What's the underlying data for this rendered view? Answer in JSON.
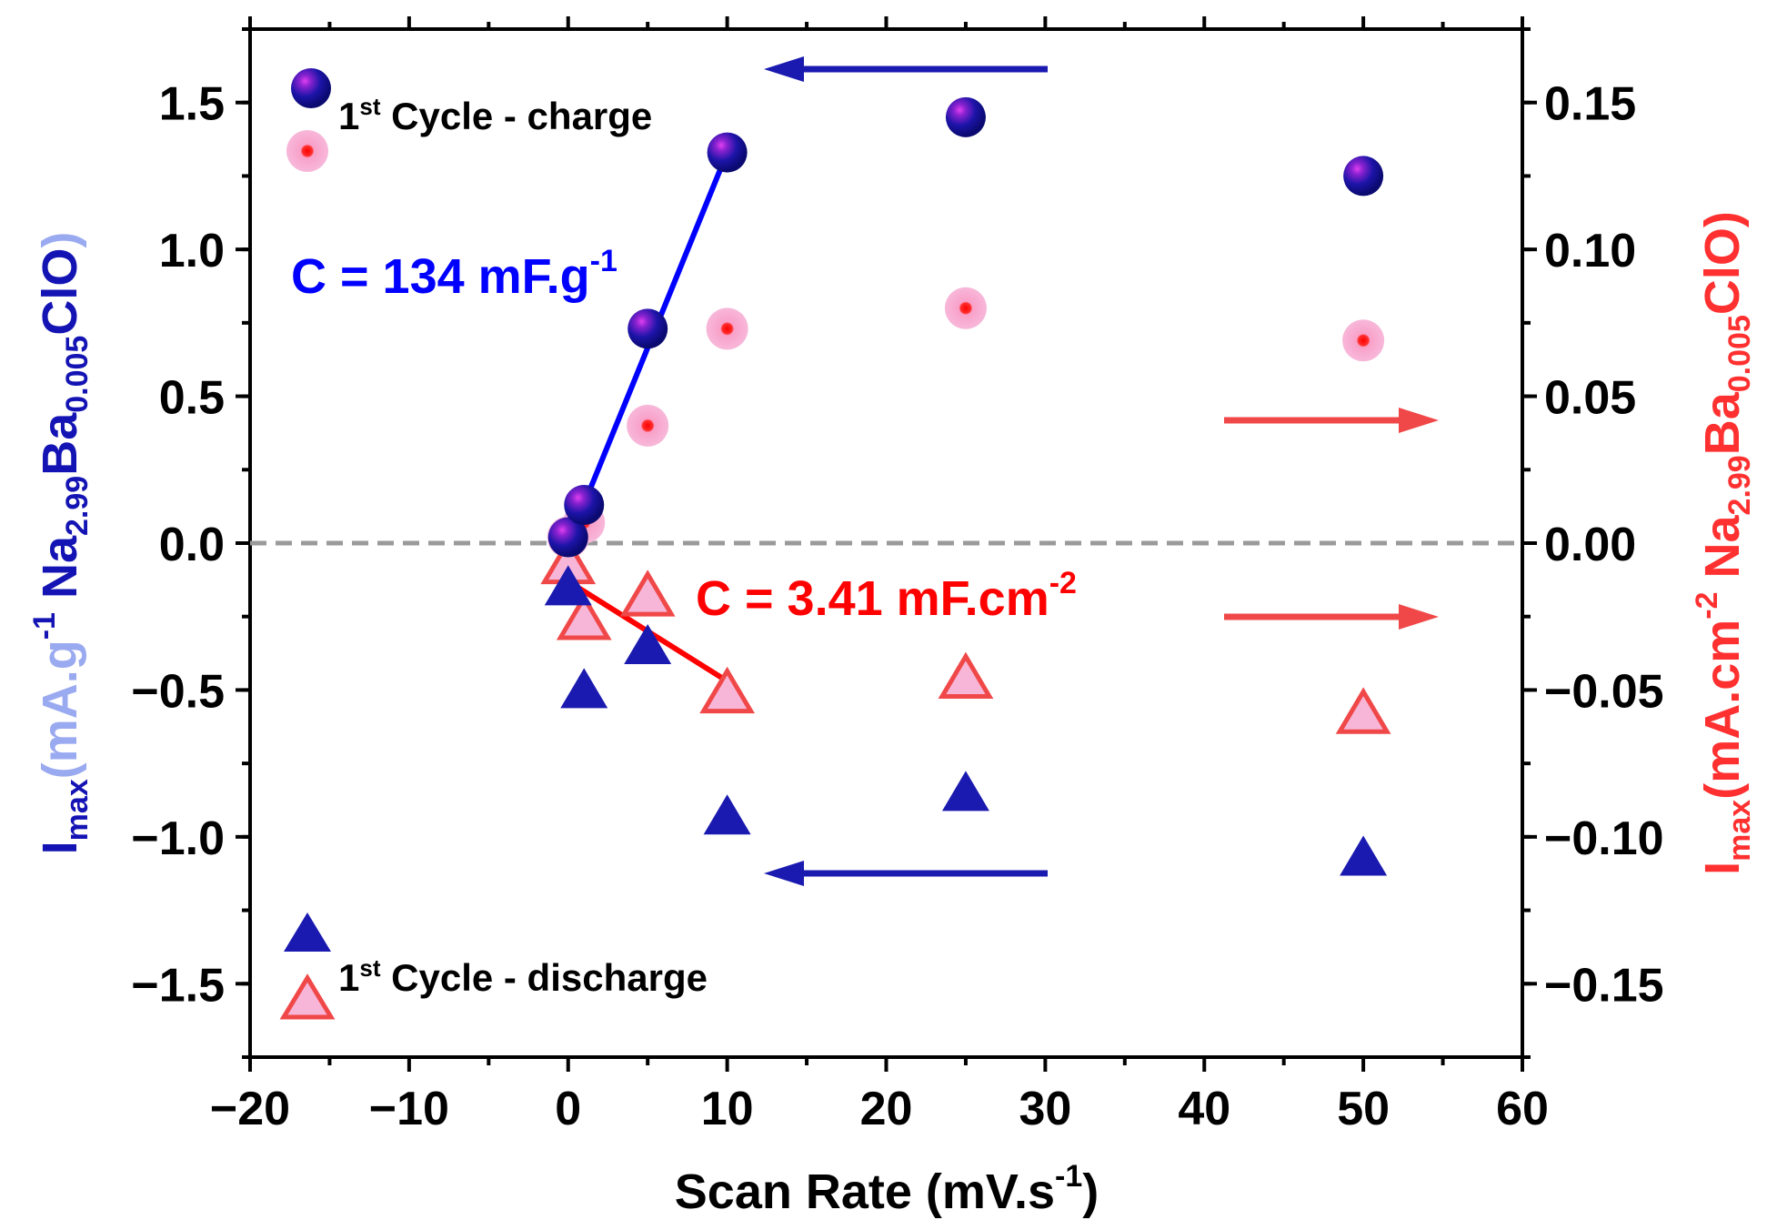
{
  "chart_data": {
    "type": "scatter",
    "xlabel": "Scan Rate (mV.s",
    "xlabel_sup": "-1",
    "xlabel_end": ")",
    "xlim": [
      -20,
      60
    ],
    "ylim_left": [
      -1.75,
      1.75
    ],
    "ylim_right": [
      -0.175,
      0.175
    ],
    "x_ticks": [
      -20,
      -10,
      0,
      10,
      20,
      30,
      40,
      50,
      60
    ],
    "x_tick_labels": [
      "−20",
      "−10",
      "0",
      "10",
      "20",
      "30",
      "40",
      "50",
      "60"
    ],
    "y_left_ticks": [
      1.5,
      1.0,
      0.5,
      0.0,
      -0.5,
      -1.0,
      -1.5
    ],
    "y_left_tick_labels": [
      "1.5",
      "1.0",
      "0.5",
      "0.0",
      "−0.5",
      "−1.0",
      "−1.5"
    ],
    "y_right_ticks": [
      0.15,
      0.1,
      0.05,
      0.0,
      -0.05,
      -0.1,
      -0.15
    ],
    "y_right_tick_labels": [
      "0.15",
      "0.10",
      "0.05",
      "0.00",
      "−0.05",
      "−0.10",
      "−0.15"
    ],
    "ylabel_left": {
      "i": "I",
      "i_sub": "max",
      "unit": "(mA.g",
      "unit_sup": "-1",
      "formula_a": " Na",
      "sub_a": "2.99",
      "formula_b": "Ba",
      "sub_b": "0.005",
      "formula_c": "ClO",
      "close": ")"
    },
    "ylabel_right": {
      "i": "I",
      "i_sub": "max",
      "unit": "(mA.cm",
      "unit_sup": "-2",
      "formula_a": " Na",
      "sub_a": "2.99",
      "formula_b": "Ba",
      "sub_b": "0.005",
      "formula_c": "ClO",
      "close": ")"
    },
    "series": [
      {
        "name": "charge (mA.g-1)",
        "axis": "left",
        "marker": "sphere",
        "color": "#1a1ab0",
        "x": [
          0,
          1,
          5,
          10,
          25,
          50
        ],
        "y": [
          0.02,
          0.13,
          0.73,
          1.33,
          1.45,
          1.25
        ]
      },
      {
        "name": "charge (mA.cm-2)",
        "axis": "right",
        "marker": "pink-dot",
        "color": "#f7b6d8",
        "x": [
          0,
          1,
          5,
          10,
          25,
          50
        ],
        "y": [
          0.002,
          0.007,
          0.04,
          0.073,
          0.08,
          0.069
        ]
      },
      {
        "name": "discharge (mA.g-1)",
        "axis": "left",
        "marker": "triangle",
        "color": "#1a1ab0",
        "x": [
          0,
          1,
          5,
          10,
          25,
          50
        ],
        "y": [
          -0.15,
          -0.5,
          -0.35,
          -0.93,
          -0.85,
          -1.07
        ]
      },
      {
        "name": "discharge (mA.cm-2)",
        "axis": "right",
        "marker": "open-triangle",
        "color": "#f04848",
        "x": [
          0,
          1,
          5,
          10,
          25,
          50
        ],
        "y": [
          -0.007,
          -0.026,
          -0.018,
          -0.051,
          -0.046,
          -0.058
        ]
      }
    ],
    "fit_lines": [
      {
        "axis": "left",
        "color": "#0000ff",
        "x": [
          0,
          10
        ],
        "y": [
          0.0,
          1.33
        ]
      },
      {
        "axis": "right",
        "color": "#ff0000",
        "x": [
          0,
          10
        ],
        "y": [
          -0.013,
          -0.047
        ]
      }
    ],
    "zero_line": {
      "y": 0,
      "style": "dashed",
      "color": "#999999"
    },
    "annotations": {
      "cap_blue": {
        "text": "C = 134 mF.g",
        "sup": "-1",
        "color": "#0000ff"
      },
      "cap_red": {
        "text": "C = 3.41 mF.cm",
        "sup": "-2",
        "color": "#ff0000"
      }
    },
    "legend": {
      "charge": {
        "prefix": "1",
        "sup": "st",
        "text": " Cycle - charge"
      },
      "discharge": {
        "prefix": "1",
        "sup": "st",
        "text": " Cycle - discharge"
      }
    },
    "arrows": [
      {
        "direction": "left",
        "axis": "left",
        "color": "#1a1ab0"
      },
      {
        "direction": "left",
        "axis": "left",
        "color": "#1a1ab0"
      },
      {
        "direction": "right",
        "axis": "right",
        "color": "#f04848"
      },
      {
        "direction": "right",
        "axis": "right",
        "color": "#f04848"
      }
    ]
  }
}
